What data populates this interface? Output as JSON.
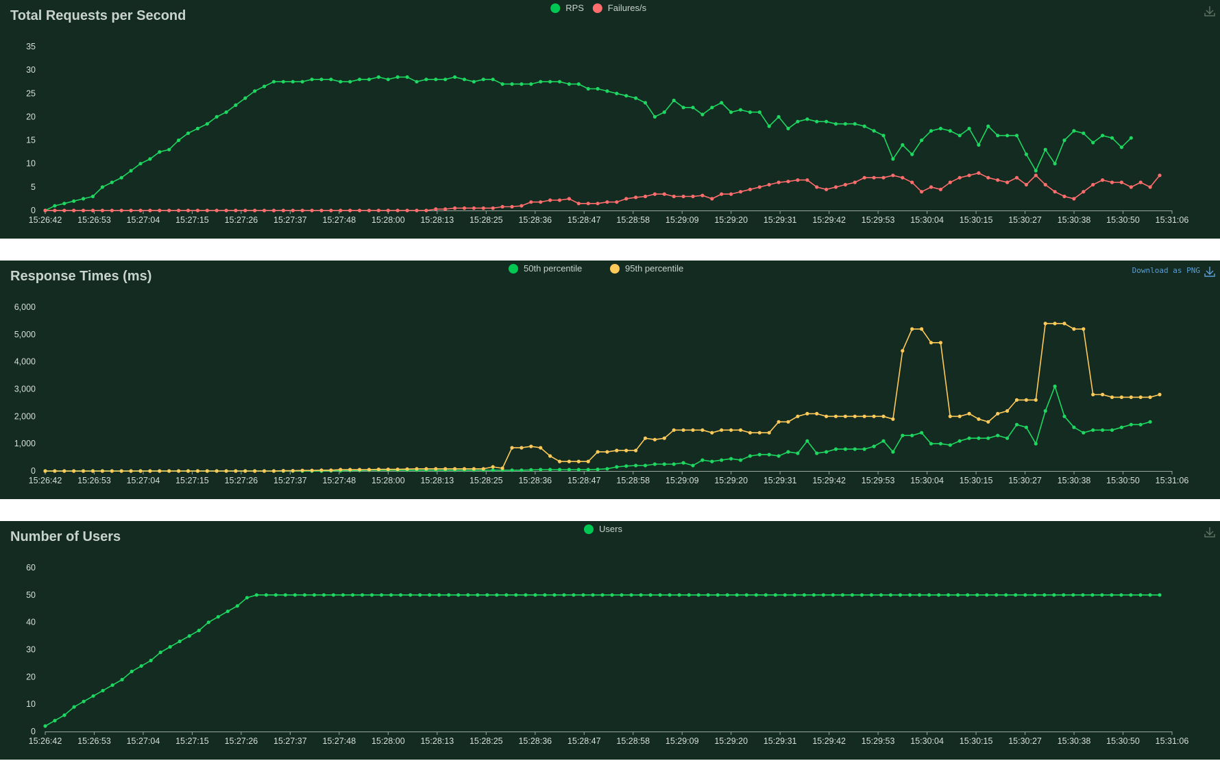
{
  "colors": {
    "panel_bg": "#132b21",
    "green": "#00c853",
    "green_line": "#1ed760",
    "red": "#ff6d6d",
    "yellow": "#ffca5a",
    "download": "#5b9fd6"
  },
  "icons": {
    "download": "download-icon"
  },
  "x_ticks": [
    "15:26:42",
    "15:26:53",
    "15:27:04",
    "15:27:15",
    "15:27:26",
    "15:27:37",
    "15:27:48",
    "15:28:00",
    "15:28:13",
    "15:28:25",
    "15:28:36",
    "15:28:47",
    "15:28:58",
    "15:29:09",
    "15:29:20",
    "15:29:31",
    "15:29:42",
    "15:29:53",
    "15:30:04",
    "15:30:15",
    "15:30:27",
    "15:30:38",
    "15:30:50",
    "15:31:06"
  ],
  "chart_data": [
    {
      "id": "rps",
      "type": "line",
      "title": "Total Requests per Second",
      "x_ticks": [
        "15:26:42",
        "15:26:53",
        "15:27:04",
        "15:27:15",
        "15:27:26",
        "15:27:37",
        "15:27:48",
        "15:28:00",
        "15:28:13",
        "15:28:25",
        "15:28:36",
        "15:28:47",
        "15:28:58",
        "15:29:09",
        "15:29:20",
        "15:29:31",
        "15:29:42",
        "15:29:53",
        "15:30:04",
        "15:30:15",
        "15:30:27",
        "15:30:38",
        "15:30:50",
        "15:31:06"
      ],
      "ylim": [
        0,
        35
      ],
      "y_ticks": [
        "0",
        "5",
        "10",
        "15",
        "20",
        "25",
        "30",
        "35"
      ],
      "y_tick_values": [
        0,
        5,
        10,
        15,
        20,
        25,
        30,
        35
      ],
      "legend_position": "top-center",
      "has_download_label": false,
      "download_label": "",
      "series": [
        {
          "name": "RPS",
          "color": "#00c853",
          "values": [
            0,
            1,
            1.5,
            2,
            2.5,
            3,
            5,
            6,
            7,
            8.5,
            10,
            11,
            12.5,
            13,
            15,
            16.5,
            17.5,
            18.5,
            20,
            21,
            22.5,
            24,
            25.5,
            26.5,
            27.5,
            27.5,
            27.5,
            27.5,
            28,
            28,
            28,
            27.5,
            27.5,
            28,
            28,
            28.5,
            28,
            28.5,
            28.5,
            27.5,
            28,
            28,
            28,
            28.5,
            28,
            27.5,
            28,
            28,
            27,
            27,
            27,
            27,
            27.5,
            27.5,
            27.5,
            27,
            27,
            26,
            26,
            25.5,
            25,
            24.5,
            24,
            23,
            20,
            21,
            23.5,
            22,
            22,
            20.5,
            22,
            23,
            21,
            21.5,
            21,
            21,
            18,
            20,
            17.5,
            19,
            19.5,
            19,
            19,
            18.5,
            18.5,
            18.5,
            18,
            17,
            16,
            11,
            14,
            12,
            15,
            17,
            17.5,
            17,
            16,
            17.5,
            14,
            18,
            16,
            16,
            16,
            12,
            8.5,
            13,
            10,
            15,
            17,
            16.5,
            14.5,
            16,
            15.5,
            13.5,
            15.5
          ]
        },
        {
          "name": "Failures/s",
          "color": "#ff6d6d",
          "values": [
            0,
            0,
            0,
            0,
            0,
            0,
            0,
            0,
            0,
            0,
            0,
            0,
            0,
            0,
            0,
            0,
            0,
            0,
            0,
            0,
            0,
            0,
            0,
            0,
            0,
            0,
            0,
            0,
            0,
            0,
            0,
            0,
            0,
            0,
            0,
            0,
            0,
            0,
            0,
            0,
            0,
            0.3,
            0.3,
            0.5,
            0.5,
            0.5,
            0.5,
            0.5,
            0.8,
            0.8,
            1,
            1.8,
            1.8,
            2.2,
            2.2,
            2.5,
            1.5,
            1.5,
            1.5,
            1.8,
            1.8,
            2.5,
            2.8,
            3,
            3.5,
            3.5,
            3,
            3,
            3,
            3.2,
            2.5,
            3.5,
            3.5,
            4,
            4.5,
            5,
            5.5,
            6,
            6.2,
            6.5,
            6.5,
            5,
            4.5,
            5,
            5.5,
            6,
            7,
            7,
            7,
            7.5,
            7,
            6,
            4,
            5,
            4.5,
            6,
            7,
            7.5,
            8,
            7,
            6.5,
            6,
            7,
            5.5,
            7.5,
            5.5,
            4,
            3,
            2.5,
            4,
            5.5,
            6.5,
            6,
            6,
            5,
            6,
            5,
            7.5
          ]
        }
      ]
    },
    {
      "id": "rt",
      "type": "line",
      "title": "Response Times (ms)",
      "x_ticks": [
        "15:26:42",
        "15:26:53",
        "15:27:04",
        "15:27:15",
        "15:27:26",
        "15:27:37",
        "15:27:48",
        "15:28:00",
        "15:28:13",
        "15:28:25",
        "15:28:36",
        "15:28:47",
        "15:28:58",
        "15:29:09",
        "15:29:20",
        "15:29:31",
        "15:29:42",
        "15:29:53",
        "15:30:04",
        "15:30:15",
        "15:30:27",
        "15:30:38",
        "15:30:50",
        "15:31:06"
      ],
      "ylim": [
        0,
        6000
      ],
      "y_ticks": [
        "0",
        "1,000",
        "2,000",
        "3,000",
        "4,000",
        "5,000",
        "6,000"
      ],
      "y_tick_values": [
        0,
        1000,
        2000,
        3000,
        4000,
        5000,
        6000
      ],
      "legend_position": "top-center",
      "has_download_label": true,
      "download_label": "Download as PNG",
      "series": [
        {
          "name": "50th percentile",
          "color": "#00c853",
          "values": [
            0,
            0,
            0,
            0,
            0,
            0,
            0,
            0,
            0,
            0,
            0,
            0,
            0,
            0,
            0,
            0,
            0,
            0,
            0,
            0,
            0,
            0,
            0,
            0,
            0,
            0,
            0,
            0,
            0,
            0,
            10,
            10,
            20,
            20,
            30,
            30,
            30,
            30,
            30,
            30,
            30,
            30,
            30,
            30,
            30,
            30,
            30,
            30,
            30,
            30,
            30,
            40,
            50,
            50,
            50,
            50,
            50,
            50,
            60,
            80,
            150,
            180,
            200,
            200,
            250,
            250,
            250,
            300,
            200,
            400,
            350,
            400,
            450,
            400,
            550,
            600,
            600,
            550,
            700,
            650,
            1100,
            650,
            700,
            800,
            800,
            800,
            800,
            900,
            1100,
            700,
            1300,
            1300,
            1400,
            1000,
            1000,
            950,
            1100,
            1200,
            1200,
            1200,
            1300,
            1200,
            1700,
            1600,
            1000,
            2200,
            3100,
            2000,
            1600,
            1400,
            1500,
            1500,
            1500,
            1600,
            1700,
            1700,
            1800
          ]
        },
        {
          "name": "95th percentile",
          "color": "#ffca5a",
          "values": [
            0,
            0,
            0,
            0,
            0,
            0,
            0,
            0,
            0,
            0,
            0,
            0,
            0,
            0,
            0,
            0,
            0,
            0,
            0,
            0,
            0,
            0,
            0,
            0,
            0,
            10,
            10,
            20,
            20,
            30,
            30,
            50,
            50,
            50,
            50,
            60,
            60,
            60,
            70,
            80,
            80,
            80,
            80,
            80,
            80,
            80,
            80,
            150,
            100,
            850,
            850,
            900,
            850,
            550,
            350,
            350,
            350,
            350,
            700,
            700,
            750,
            750,
            750,
            1200,
            1150,
            1200,
            1500,
            1500,
            1500,
            1500,
            1400,
            1500,
            1500,
            1500,
            1400,
            1400,
            1400,
            1800,
            1800,
            2000,
            2100,
            2100,
            2000,
            2000,
            2000,
            2000,
            2000,
            2000,
            2000,
            1900,
            4400,
            5200,
            5200,
            4700,
            4700,
            2000,
            2000,
            2100,
            1900,
            1800,
            2100,
            2200,
            2600,
            2600,
            2600,
            5400,
            5400,
            5400,
            5200,
            5200,
            2800,
            2800,
            2700,
            2700,
            2700,
            2700,
            2700,
            2800
          ]
        }
      ]
    },
    {
      "id": "users",
      "type": "line",
      "title": "Number of Users",
      "x_ticks": [
        "15:26:42",
        "15:26:53",
        "15:27:04",
        "15:27:15",
        "15:27:26",
        "15:27:37",
        "15:27:48",
        "15:28:00",
        "15:28:13",
        "15:28:25",
        "15:28:36",
        "15:28:47",
        "15:28:58",
        "15:29:09",
        "15:29:20",
        "15:29:31",
        "15:29:42",
        "15:29:53",
        "15:30:04",
        "15:30:15",
        "15:30:27",
        "15:30:38",
        "15:30:50",
        "15:31:06"
      ],
      "ylim": [
        0,
        60
      ],
      "y_ticks": [
        "0",
        "10",
        "20",
        "30",
        "40",
        "50",
        "60"
      ],
      "y_tick_values": [
        0,
        10,
        20,
        30,
        40,
        50,
        60
      ],
      "legend_position": "top-center",
      "has_download_label": false,
      "download_label": "",
      "series": [
        {
          "name": "Users",
          "color": "#00c853",
          "values": [
            2,
            4,
            6,
            9,
            11,
            13,
            15,
            17,
            19,
            22,
            24,
            26,
            29,
            31,
            33,
            35,
            37,
            40,
            42,
            44,
            46,
            49,
            50,
            50,
            50,
            50,
            50,
            50,
            50,
            50,
            50,
            50,
            50,
            50,
            50,
            50,
            50,
            50,
            50,
            50,
            50,
            50,
            50,
            50,
            50,
            50,
            50,
            50,
            50,
            50,
            50,
            50,
            50,
            50,
            50,
            50,
            50,
            50,
            50,
            50,
            50,
            50,
            50,
            50,
            50,
            50,
            50,
            50,
            50,
            50,
            50,
            50,
            50,
            50,
            50,
            50,
            50,
            50,
            50,
            50,
            50,
            50,
            50,
            50,
            50,
            50,
            50,
            50,
            50,
            50,
            50,
            50,
            50,
            50,
            50,
            50,
            50,
            50,
            50,
            50,
            50,
            50,
            50,
            50,
            50,
            50,
            50,
            50,
            50,
            50,
            50,
            50,
            50,
            50,
            50,
            50,
            50
          ]
        }
      ]
    }
  ]
}
